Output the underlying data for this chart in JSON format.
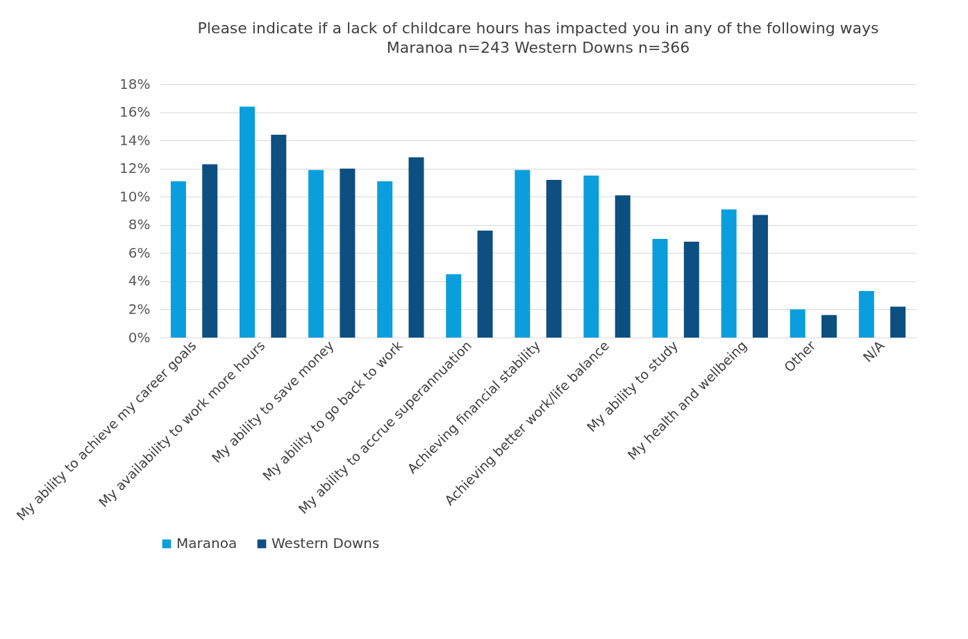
{
  "chart_data": {
    "type": "bar",
    "title": "Please indicate if a lack of childcare hours has impacted you in any of the following ways",
    "subtitle": "Maranoa n=243 Western Downs n=366",
    "categories": [
      "My ability to achieve my career goals",
      "My availability to work more hours",
      "My ability to save money",
      "My ability to go back to work",
      "My ability to accrue superannuation",
      "Achieving financial stability",
      "Achieving better work/life balance",
      "My ability to study",
      "My health and wellbeing",
      "Other",
      "N/A"
    ],
    "series": [
      {
        "name": "Maranoa",
        "color": "#0a9fdc",
        "values": [
          11.1,
          16.4,
          11.9,
          11.1,
          4.5,
          11.9,
          11.5,
          7.0,
          9.1,
          2.0,
          3.3
        ]
      },
      {
        "name": "Western Downs",
        "color": "#0d4f80",
        "values": [
          12.3,
          14.4,
          12.0,
          12.8,
          7.6,
          11.2,
          10.1,
          6.8,
          8.7,
          1.6,
          2.2
        ]
      }
    ],
    "ylim": [
      0,
      18
    ],
    "yticks": [
      {
        "value": 0,
        "label": "0%"
      },
      {
        "value": 2,
        "label": "2%"
      },
      {
        "value": 4,
        "label": "4%"
      },
      {
        "value": 6,
        "label": "6%"
      },
      {
        "value": 8,
        "label": "8%"
      },
      {
        "value": 10,
        "label": "10%"
      },
      {
        "value": 12,
        "label": "12%"
      },
      {
        "value": 14,
        "label": "14%"
      },
      {
        "value": 16,
        "label": "16%"
      },
      {
        "value": 18,
        "label": "18%"
      }
    ],
    "grid": "y",
    "legend": "bottom"
  }
}
